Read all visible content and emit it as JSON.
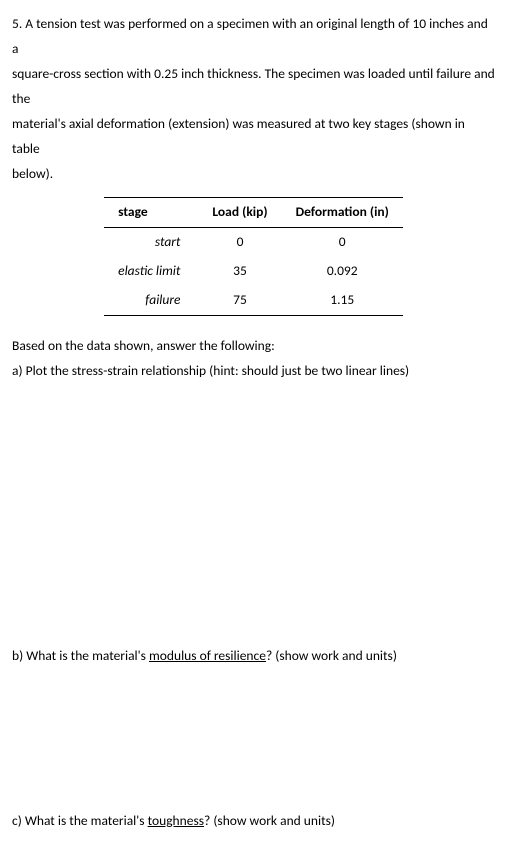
{
  "problem": {
    "intro_line1": "5. A tension test was performed on a specimen with an original length of 10 inches and a",
    "intro_line2": "square-cross section with 0.25 inch thickness. The specimen was loaded until failure and the",
    "intro_line3": "material's axial deformation (extension) was measured at two key stages (shown in table",
    "intro_line4": "below)."
  },
  "table": {
    "headers": {
      "c1": "stage",
      "c2": "Load (kip)",
      "c3": "Deformation (in)"
    },
    "rows": [
      {
        "stage": "start",
        "load": "0",
        "def": "0"
      },
      {
        "stage": "elastic limit",
        "load": "35",
        "def": "0.092"
      },
      {
        "stage": "failure",
        "load": "75",
        "def": "1.15"
      }
    ]
  },
  "questions": {
    "lead": "Based on the data shown, answer the following:",
    "a": "a) Plot the stress-strain relationship (hint: should just be two linear lines)",
    "b_pre": "b) What is the material's ",
    "b_ul": "modulus of resilience",
    "b_post": "? (show work and units)",
    "c_pre": "c) What is the material's ",
    "c_ul": "toughness",
    "c_post": "? (show work and units)"
  }
}
